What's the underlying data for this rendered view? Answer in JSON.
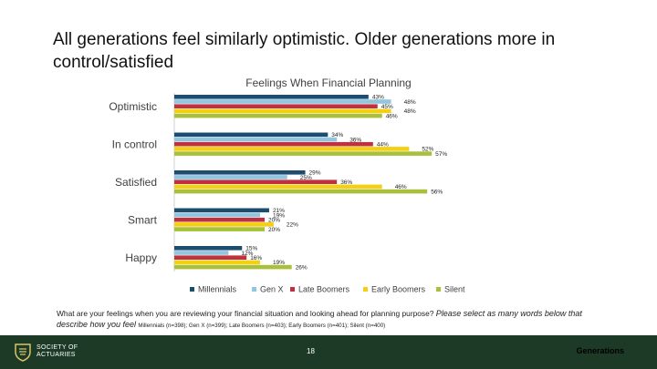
{
  "slide": {
    "title": "All generations feel similarly optimistic. Older generations more in control/satisfied"
  },
  "chart_data": {
    "type": "bar",
    "orientation": "horizontal",
    "title": "Feelings When Financial Planning",
    "categories": [
      "Optimistic",
      "In control",
      "Satisfied",
      "Smart",
      "Happy"
    ],
    "series": [
      {
        "name": "Millennials",
        "color": "#1d4d6e",
        "values": [
          43,
          34,
          29,
          21,
          15
        ]
      },
      {
        "name": "Gen X",
        "color": "#92c5de",
        "values": [
          48,
          36,
          25,
          19,
          12
        ]
      },
      {
        "name": "Late Boomers",
        "color": "#c0303f",
        "values": [
          45,
          44,
          36,
          20,
          16
        ]
      },
      {
        "name": "Early Boomers",
        "color": "#f4d015",
        "values": [
          48,
          52,
          46,
          22,
          19
        ]
      },
      {
        "name": "Silent",
        "color": "#a9c03a",
        "values": [
          46,
          57,
          56,
          20,
          26
        ]
      }
    ],
    "value_suffix": "%",
    "xlim": [
      0,
      60
    ],
    "legend": "bottom"
  },
  "footnote": {
    "question": "What are your feelings when you are reviewing your financial situation and looking ahead for planning purpose?",
    "instruction": "Please select as many words below that describe how you feel",
    "sample_sizes": "Millennials (n=398); Gen X (n=399); Late Boomers (n=403); Early Boomers (n=401); Silent (n=400)"
  },
  "footer": {
    "logo_line1": "SOCIETY OF",
    "logo_line2": "ACTUARIES",
    "page_number": "18",
    "section": "Generations"
  }
}
